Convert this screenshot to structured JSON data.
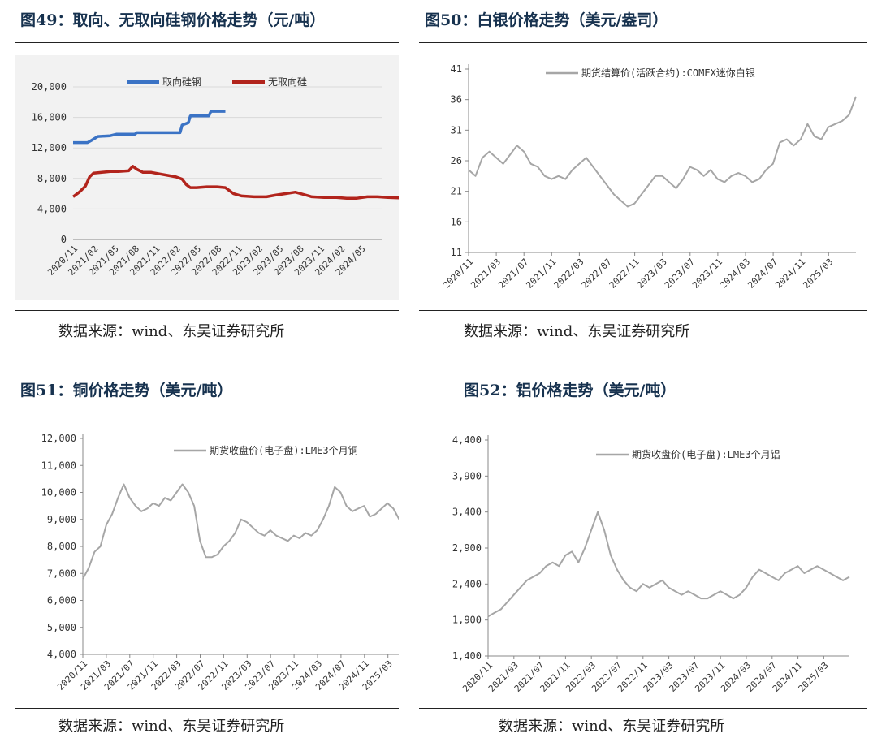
{
  "panels": [
    {
      "title": "图49：取向、无取向硅钢价格走势（元/吨）",
      "source": "数据来源：wind、东吴证券研究所"
    },
    {
      "title": "图50：白银价格走势（美元/盎司）",
      "source": "数据来源：wind、东吴证券研究所"
    },
    {
      "title": "图51：铜价格走势（美元/吨）",
      "source": "数据来源：wind、东吴证券研究所"
    },
    {
      "title": "图52：铝价格走势（美元/吨）",
      "source": "数据来源：wind、东吴证券研究所"
    }
  ],
  "chart_data": [
    {
      "type": "line",
      "xlabel": "",
      "ylabel": "",
      "y_ticks": [
        "0",
        "4,000",
        "8,000",
        "12,000",
        "16,000",
        "20,000"
      ],
      "ylim": [
        0,
        20000
      ],
      "x_ticks": [
        "2020/11",
        "2021/02",
        "2021/05",
        "2021/08",
        "2021/11",
        "2022/02",
        "2022/05",
        "2022/08",
        "2022/11",
        "2023/02",
        "2023/05",
        "2023/08",
        "2023/11",
        "2024/02",
        "2024/05"
      ],
      "x_range": [
        0,
        15
      ],
      "grid": true,
      "legend": "top",
      "colors": [
        "#3b73c5",
        "#b2241c"
      ],
      "series": [
        {
          "name": "取向硅钢",
          "points": [
            [
              0,
              12700
            ],
            [
              0.7,
              12700
            ],
            [
              0.9,
              13000
            ],
            [
              1.2,
              13500
            ],
            [
              1.8,
              13600
            ],
            [
              2.1,
              13800
            ],
            [
              3.0,
              13800
            ],
            [
              3.1,
              14000
            ],
            [
              5.0,
              14000
            ],
            [
              5.2,
              14000
            ],
            [
              5.3,
              15000
            ],
            [
              5.6,
              15300
            ],
            [
              5.7,
              16200
            ],
            [
              6.6,
              16200
            ],
            [
              6.7,
              16800
            ],
            [
              7.4,
              16800
            ]
          ]
        },
        {
          "name": "无取向硅",
          "points": [
            [
              0,
              5600
            ],
            [
              0.3,
              6200
            ],
            [
              0.6,
              7000
            ],
            [
              0.8,
              8200
            ],
            [
              1.0,
              8700
            ],
            [
              1.4,
              8800
            ],
            [
              1.8,
              8900
            ],
            [
              2.2,
              8900
            ],
            [
              2.7,
              9000
            ],
            [
              2.9,
              9600
            ],
            [
              3.1,
              9200
            ],
            [
              3.4,
              8800
            ],
            [
              3.8,
              8800
            ],
            [
              4.2,
              8600
            ],
            [
              4.6,
              8400
            ],
            [
              5.0,
              8200
            ],
            [
              5.3,
              7900
            ],
            [
              5.5,
              7200
            ],
            [
              5.7,
              6800
            ],
            [
              6.0,
              6800
            ],
            [
              6.5,
              6900
            ],
            [
              7.0,
              6900
            ],
            [
              7.4,
              6800
            ],
            [
              7.6,
              6400
            ],
            [
              7.8,
              6000
            ],
            [
              8.2,
              5700
            ],
            [
              8.8,
              5600
            ],
            [
              9.4,
              5600
            ],
            [
              9.8,
              5800
            ],
            [
              10.3,
              6000
            ],
            [
              10.8,
              6200
            ],
            [
              11.2,
              5900
            ],
            [
              11.6,
              5600
            ],
            [
              12.2,
              5500
            ],
            [
              12.8,
              5500
            ],
            [
              13.3,
              5400
            ],
            [
              13.8,
              5400
            ],
            [
              14.3,
              5600
            ],
            [
              14.8,
              5600
            ],
            [
              15.3,
              5500
            ],
            [
              16.3,
              5400
            ]
          ]
        }
      ]
    },
    {
      "type": "line",
      "xlabel": "",
      "ylabel": "",
      "y_ticks": [
        "11",
        "16",
        "21",
        "26",
        "31",
        "36",
        "41"
      ],
      "ylim": [
        11,
        41
      ],
      "x_ticks": [
        "2020/11",
        "2021/03",
        "2021/07",
        "2021/11",
        "2022/03",
        "2022/07",
        "2022/11",
        "2023/03",
        "2023/07",
        "2023/11",
        "2024/03",
        "2024/07",
        "2024/11",
        "2025/03"
      ],
      "x_range": [
        0,
        56
      ],
      "grid": false,
      "legend": "top",
      "colors": [
        "#a6a6a6"
      ],
      "series": [
        {
          "name": "期货结算价(活跃合约):COMEX迷你白银",
          "points": [
            [
              0,
              24.5
            ],
            [
              1,
              23.5
            ],
            [
              2,
              26.5
            ],
            [
              3,
              27.5
            ],
            [
              4,
              26.5
            ],
            [
              5,
              25.5
            ],
            [
              6,
              27.0
            ],
            [
              7,
              28.5
            ],
            [
              8,
              27.5
            ],
            [
              9,
              25.5
            ],
            [
              10,
              25.0
            ],
            [
              11,
              23.5
            ],
            [
              12,
              23.0
            ],
            [
              13,
              23.5
            ],
            [
              14,
              23.0
            ],
            [
              15,
              24.5
            ],
            [
              16,
              25.5
            ],
            [
              17,
              26.5
            ],
            [
              18,
              25.0
            ],
            [
              19,
              23.5
            ],
            [
              20,
              22.0
            ],
            [
              21,
              20.5
            ],
            [
              22,
              19.5
            ],
            [
              23,
              18.5
            ],
            [
              24,
              19.0
            ],
            [
              25,
              20.5
            ],
            [
              26,
              22.0
            ],
            [
              27,
              23.5
            ],
            [
              28,
              23.5
            ],
            [
              29,
              22.5
            ],
            [
              30,
              21.5
            ],
            [
              31,
              23.0
            ],
            [
              32,
              25.0
            ],
            [
              33,
              24.5
            ],
            [
              34,
              23.5
            ],
            [
              35,
              24.5
            ],
            [
              36,
              23.0
            ],
            [
              37,
              22.5
            ],
            [
              38,
              23.5
            ],
            [
              39,
              24.0
            ],
            [
              40,
              23.5
            ],
            [
              41,
              22.5
            ],
            [
              42,
              23.0
            ],
            [
              43,
              24.5
            ],
            [
              44,
              25.5
            ],
            [
              45,
              29.0
            ],
            [
              46,
              29.5
            ],
            [
              47,
              28.5
            ],
            [
              48,
              29.5
            ],
            [
              49,
              32.0
            ],
            [
              50,
              30.0
            ],
            [
              51,
              29.5
            ],
            [
              52,
              31.5
            ],
            [
              53,
              32.0
            ],
            [
              54,
              32.5
            ],
            [
              55,
              33.5
            ],
            [
              56,
              36.5
            ]
          ]
        }
      ]
    },
    {
      "type": "line",
      "xlabel": "",
      "ylabel": "",
      "y_ticks": [
        "4,000",
        "5,000",
        "6,000",
        "7,000",
        "8,000",
        "9,000",
        "10,000",
        "11,000",
        "12,000"
      ],
      "ylim": [
        4000,
        12000
      ],
      "x_ticks": [
        "2020/11",
        "2021/03",
        "2021/07",
        "2021/11",
        "2022/03",
        "2022/07",
        "2022/11",
        "2023/03",
        "2023/07",
        "2023/11",
        "2024/03",
        "2024/07",
        "2024/11",
        "2025/03"
      ],
      "x_range": [
        0,
        56
      ],
      "grid": false,
      "legend": "top",
      "colors": [
        "#a6a6a6"
      ],
      "series": [
        {
          "name": "期货收盘价(电子盘):LME3个月铜",
          "points": [
            [
              0,
              6800
            ],
            [
              1,
              7200
            ],
            [
              2,
              7800
            ],
            [
              3,
              8000
            ],
            [
              4,
              8800
            ],
            [
              5,
              9200
            ],
            [
              6,
              9800
            ],
            [
              7,
              10300
            ],
            [
              8,
              9800
            ],
            [
              9,
              9500
            ],
            [
              10,
              9300
            ],
            [
              11,
              9400
            ],
            [
              12,
              9600
            ],
            [
              13,
              9500
            ],
            [
              14,
              9800
            ],
            [
              15,
              9700
            ],
            [
              16,
              10000
            ],
            [
              17,
              10300
            ],
            [
              18,
              10000
            ],
            [
              19,
              9500
            ],
            [
              20,
              8200
            ],
            [
              21,
              7600
            ],
            [
              22,
              7600
            ],
            [
              23,
              7700
            ],
            [
              24,
              8000
            ],
            [
              25,
              8200
            ],
            [
              26,
              8500
            ],
            [
              27,
              9000
            ],
            [
              28,
              8900
            ],
            [
              29,
              8700
            ],
            [
              30,
              8500
            ],
            [
              31,
              8400
            ],
            [
              32,
              8600
            ],
            [
              33,
              8400
            ],
            [
              34,
              8300
            ],
            [
              35,
              8200
            ],
            [
              36,
              8400
            ],
            [
              37,
              8300
            ],
            [
              38,
              8500
            ],
            [
              39,
              8400
            ],
            [
              40,
              8600
            ],
            [
              41,
              9000
            ],
            [
              42,
              9500
            ],
            [
              43,
              10200
            ],
            [
              44,
              10000
            ],
            [
              45,
              9500
            ],
            [
              46,
              9300
            ],
            [
              47,
              9400
            ],
            [
              48,
              9500
            ],
            [
              49,
              9100
            ],
            [
              50,
              9200
            ],
            [
              51,
              9400
            ],
            [
              52,
              9600
            ],
            [
              53,
              9400
            ],
            [
              54,
              9000
            ],
            [
              55,
              9500
            ],
            [
              56,
              9700
            ]
          ]
        }
      ]
    },
    {
      "type": "line",
      "xlabel": "",
      "ylabel": "",
      "y_ticks": [
        "1,400",
        "1,900",
        "2,400",
        "2,900",
        "3,400",
        "3,900",
        "4,400"
      ],
      "ylim": [
        1400,
        4400
      ],
      "x_ticks": [
        "2020/11",
        "2021/03",
        "2021/07",
        "2021/11",
        "2022/03",
        "2022/07",
        "2022/11",
        "2023/03",
        "2023/07",
        "2023/11",
        "2024/03",
        "2024/07",
        "2024/11",
        "2025/03"
      ],
      "x_range": [
        0,
        56
      ],
      "grid": false,
      "legend": "top",
      "colors": [
        "#a6a6a6"
      ],
      "series": [
        {
          "name": "期货收盘价(电子盘):LME3个月铝",
          "points": [
            [
              0,
              1950
            ],
            [
              1,
              2000
            ],
            [
              2,
              2050
            ],
            [
              3,
              2150
            ],
            [
              4,
              2250
            ],
            [
              5,
              2350
            ],
            [
              6,
              2450
            ],
            [
              7,
              2500
            ],
            [
              8,
              2550
            ],
            [
              9,
              2650
            ],
            [
              10,
              2700
            ],
            [
              11,
              2650
            ],
            [
              12,
              2800
            ],
            [
              13,
              2850
            ],
            [
              14,
              2700
            ],
            [
              15,
              2900
            ],
            [
              16,
              3150
            ],
            [
              17,
              3400
            ],
            [
              18,
              3150
            ],
            [
              19,
              2800
            ],
            [
              20,
              2600
            ],
            [
              21,
              2450
            ],
            [
              22,
              2350
            ],
            [
              23,
              2300
            ],
            [
              24,
              2400
            ],
            [
              25,
              2350
            ],
            [
              26,
              2400
            ],
            [
              27,
              2450
            ],
            [
              28,
              2350
            ],
            [
              29,
              2300
            ],
            [
              30,
              2250
            ],
            [
              31,
              2300
            ],
            [
              32,
              2250
            ],
            [
              33,
              2200
            ],
            [
              34,
              2200
            ],
            [
              35,
              2250
            ],
            [
              36,
              2300
            ],
            [
              37,
              2250
            ],
            [
              38,
              2200
            ],
            [
              39,
              2250
            ],
            [
              40,
              2350
            ],
            [
              41,
              2500
            ],
            [
              42,
              2600
            ],
            [
              43,
              2550
            ],
            [
              44,
              2500
            ],
            [
              45,
              2450
            ],
            [
              46,
              2550
            ],
            [
              47,
              2600
            ],
            [
              48,
              2650
            ],
            [
              49,
              2550
            ],
            [
              50,
              2600
            ],
            [
              51,
              2650
            ],
            [
              52,
              2600
            ],
            [
              53,
              2550
            ],
            [
              54,
              2500
            ],
            [
              55,
              2450
            ],
            [
              56,
              2500
            ]
          ]
        }
      ]
    }
  ]
}
